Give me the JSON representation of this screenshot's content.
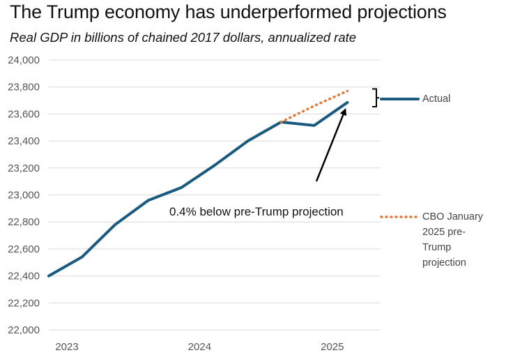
{
  "chart_data": {
    "type": "line",
    "title": "The Trump economy has underperformed projections",
    "subtitle": "Real GDP in billions of chained 2017 dollars, annualized rate",
    "xlabel": "",
    "ylabel": "",
    "ylim": [
      22000,
      24000
    ],
    "yticks": [
      22000,
      22200,
      22400,
      22600,
      22800,
      23000,
      23200,
      23400,
      23600,
      23800,
      24000
    ],
    "ytick_labels": [
      "22,000",
      "22,200",
      "22,400",
      "22,600",
      "22,800",
      "23,000",
      "23,200",
      "23,400",
      "23,600",
      "23,800",
      "24,000"
    ],
    "xlim": [
      2023.0,
      2025.5
    ],
    "xticks": [
      2023,
      2024,
      2025
    ],
    "xtick_labels": [
      "2023",
      "2024",
      "2025"
    ],
    "grid": true,
    "series": [
      {
        "name": "Actual",
        "color": "#1a5a7e",
        "style": "solid",
        "x": [
          2023.0,
          2023.25,
          2023.5,
          2023.75,
          2024.0,
          2024.25,
          2024.5,
          2024.75,
          2025.0,
          2025.25
        ],
        "values": [
          22400,
          22540,
          22780,
          22960,
          23055,
          23220,
          23400,
          23540,
          23515,
          23685
        ]
      },
      {
        "name": "CBO January 2025 pre-Trump projection",
        "color": "#e07b39",
        "style": "dotted",
        "x": [
          2024.75,
          2025.0,
          2025.25
        ],
        "values": [
          23540,
          23660,
          23770
        ]
      }
    ],
    "legend": {
      "placement": "right",
      "actual_label": "Actual",
      "projection_label_lines": [
        "CBO January",
        "2025 pre-",
        "Trump",
        "projection"
      ]
    },
    "annotations": [
      {
        "text": "0.4% below pre-Trump projection",
        "points_to": "gap between Actual and projection at 2025.25"
      }
    ]
  }
}
